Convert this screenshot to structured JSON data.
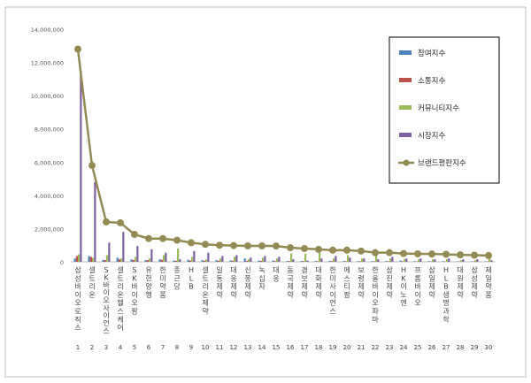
{
  "chart_data": {
    "type": "bar",
    "x": [
      1,
      2,
      3,
      4,
      5,
      6,
      7,
      8,
      9,
      10,
      11,
      12,
      13,
      14,
      15,
      16,
      17,
      18,
      19,
      20,
      21,
      22,
      23,
      24,
      25,
      26,
      27,
      28,
      29,
      30
    ],
    "categories": [
      "삼성바이오로직스",
      "셀트리온",
      "SK바이오사이언스",
      "셀트리온헬스케어",
      "SK바이오팜",
      "유한양행",
      "한미약품",
      "종근당",
      "HLB",
      "셀트리온제약",
      "일동제약",
      "대웅제약",
      "신풍제약",
      "녹십자",
      "대웅",
      "동국제약",
      "경보제약",
      "대화제약",
      "한미사이언스",
      "에스티팜",
      "보령제약",
      "한올바이오파마",
      "삼진제약",
      "HK이노엔",
      "프롬바이오",
      "삼일제약",
      "HLB생명과학",
      "대원제약",
      "삼성제약",
      "제일약품"
    ],
    "yticks": [
      "0",
      "2,000,000",
      "4,000,000",
      "6,000,000",
      "8,000,000",
      "10,000,000",
      "12,000,000",
      "14,000,000"
    ],
    "ylim": [
      0,
      14000000
    ],
    "series": [
      {
        "name": "참여지수",
        "kind": "bar",
        "color": "#4f81bd",
        "values": [
          200000,
          350000,
          120000,
          250000,
          150000,
          100000,
          150000,
          80000,
          120000,
          100000,
          100000,
          90000,
          200000,
          80000,
          80000,
          50000,
          50000,
          50000,
          60000,
          50000,
          40000,
          40000,
          50000,
          80000,
          40000,
          40000,
          40000,
          30000,
          30000,
          30000
        ]
      },
      {
        "name": "소통지수",
        "kind": "bar",
        "color": "#c0504d",
        "values": [
          350000,
          300000,
          100000,
          150000,
          100000,
          100000,
          120000,
          60000,
          80000,
          60000,
          60000,
          60000,
          60000,
          50000,
          40000,
          40000,
          40000,
          30000,
          40000,
          30000,
          30000,
          30000,
          30000,
          30000,
          20000,
          20000,
          20000,
          20000,
          20000,
          20000
        ]
      },
      {
        "name": "커뮤니티지수",
        "kind": "bar",
        "color": "#9bbb59",
        "values": [
          450000,
          250000,
          400000,
          200000,
          300000,
          200000,
          400000,
          800000,
          300000,
          150000,
          200000,
          300000,
          150000,
          250000,
          200000,
          500000,
          500000,
          550000,
          200000,
          400000,
          200000,
          350000,
          200000,
          150000,
          150000,
          150000,
          150000,
          100000,
          100000,
          200000
        ]
      },
      {
        "name": "시장지수",
        "kind": "bar",
        "color": "#8064a2",
        "values": [
          11500000,
          4800000,
          1150000,
          1800000,
          950000,
          750000,
          550000,
          150000,
          650000,
          550000,
          350000,
          400000,
          250000,
          350000,
          300000,
          150000,
          80000,
          200000,
          350000,
          250000,
          200000,
          150000,
          300000,
          200000,
          200000,
          150000,
          200000,
          150000,
          150000,
          100000
        ]
      },
      {
        "name": "브랜드평판지수",
        "kind": "line",
        "color": "#948a54",
        "values": [
          12800000,
          5800000,
          2400000,
          2350000,
          1650000,
          1400000,
          1400000,
          1300000,
          1150000,
          1050000,
          1000000,
          980000,
          960000,
          960000,
          950000,
          850000,
          800000,
          750000,
          700000,
          700000,
          650000,
          550000,
          550000,
          500000,
          480000,
          470000,
          450000,
          420000,
          400000,
          380000
        ]
      }
    ],
    "legend": "right"
  }
}
